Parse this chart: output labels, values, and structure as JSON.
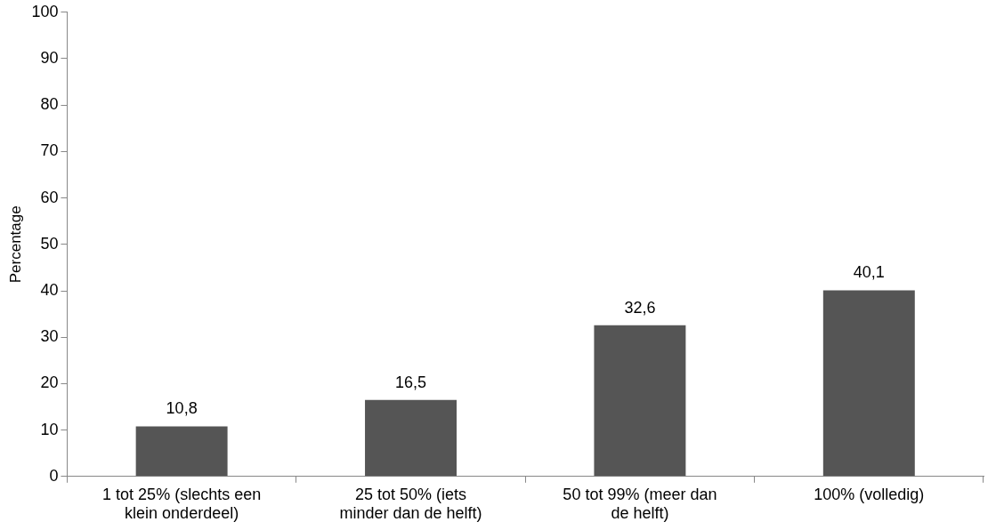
{
  "chart_data": {
    "type": "bar",
    "ylabel": "Percentage",
    "categories": [
      "1 tot 25% (slechts een klein onderdeel)",
      "25 tot 50% (iets minder dan de helft)",
      "50 tot 99% (meer dan de helft)",
      "100% (volledig)"
    ],
    "values": [
      10.8,
      16.5,
      32.6,
      40.1
    ],
    "value_labels": [
      "10,8",
      "16,5",
      "32,6",
      "40,1"
    ],
    "color": "#555555",
    "ylim": [
      0,
      100
    ],
    "yticks": [
      0,
      10,
      20,
      30,
      40,
      50,
      60,
      70,
      80,
      90,
      100
    ],
    "grid": false,
    "legend": false
  }
}
